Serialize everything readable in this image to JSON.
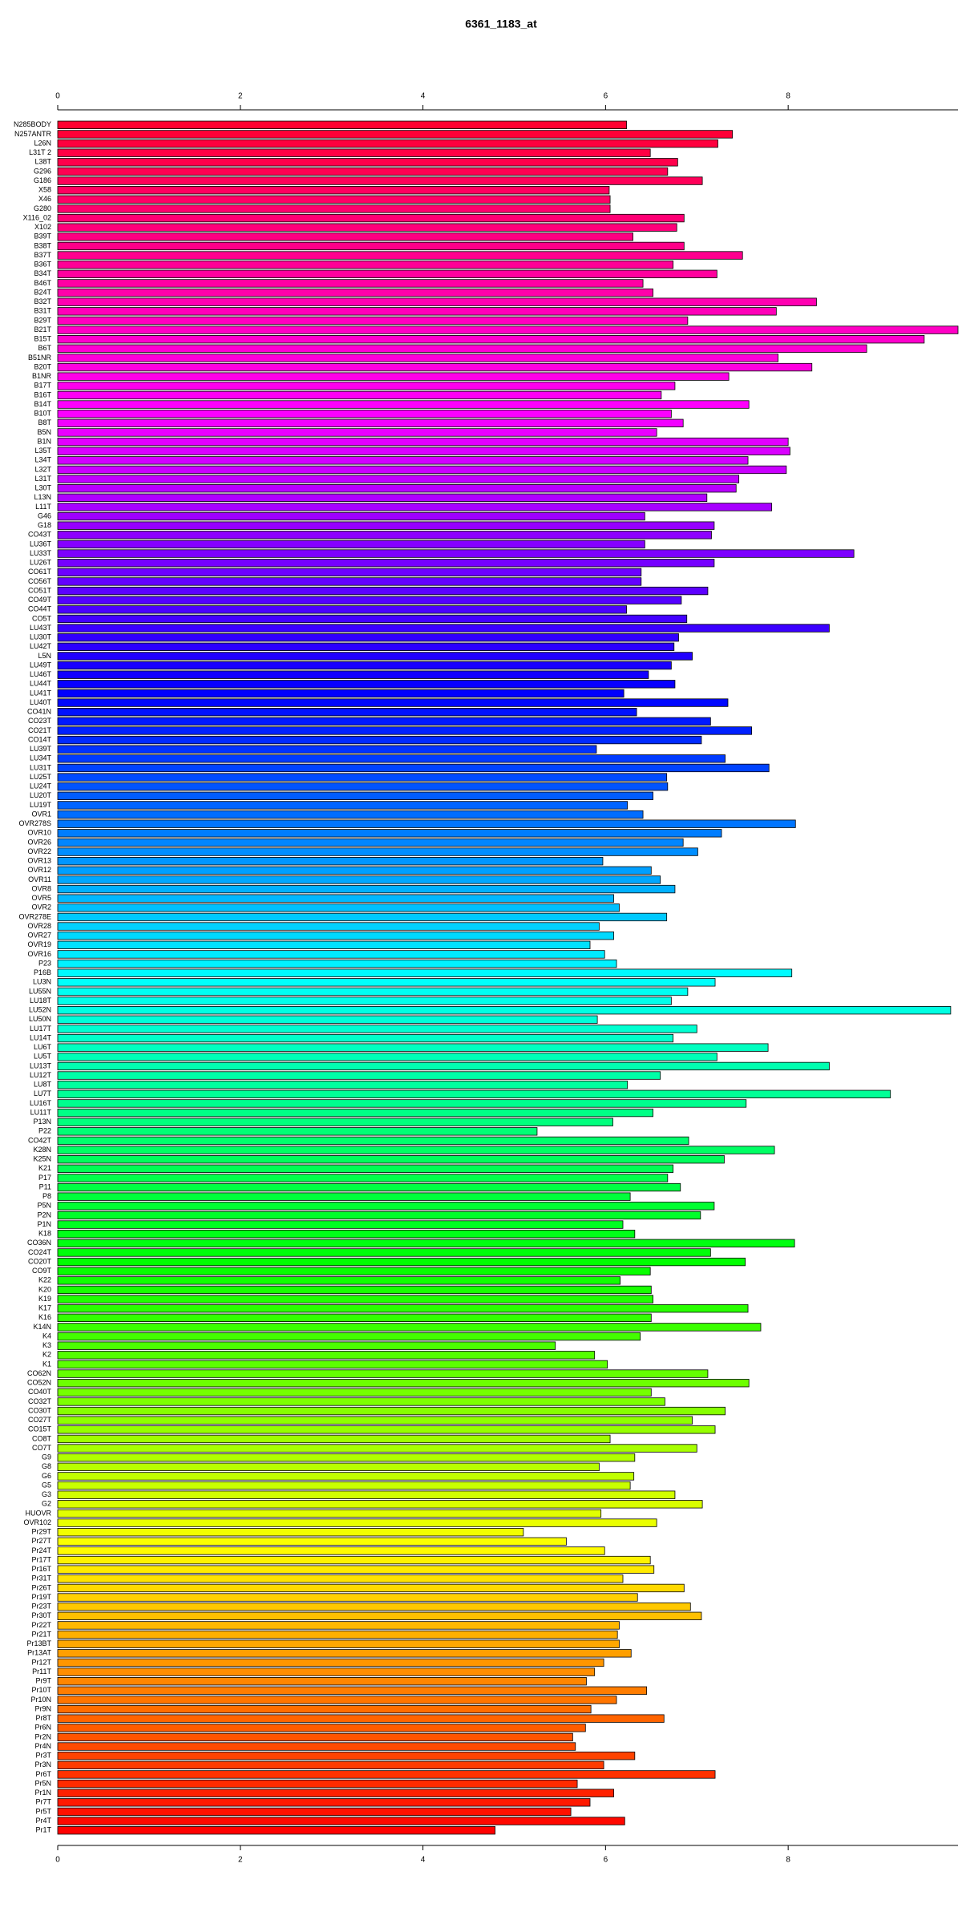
{
  "chart_data": {
    "type": "barh",
    "title": "6361_1183_at",
    "categories": [
      "N285BODY",
      "N257ANTR",
      "L26N",
      "L31T 2",
      "L38T",
      "G296",
      "G186",
      "X58",
      "X46",
      "G280",
      "X116_02",
      "X102",
      "B39T",
      "B38T",
      "B37T",
      "B36T",
      "B34T",
      "B46T",
      "B24T",
      "B32T",
      "B31T",
      "B29T",
      "B21T",
      "B15T",
      "B6T",
      "B51NR",
      "B20T",
      "B1NR",
      "B17T",
      "B16T",
      "B14T",
      "B10T",
      "B8T",
      "B5N",
      "B1N",
      "L35T",
      "L34T",
      "L32T",
      "L31T",
      "L30T",
      "L13N",
      "L11T",
      "G46",
      "G18",
      "CO43T",
      "LU36T",
      "LU33T",
      "LU26T",
      "CO61T",
      "CO56T",
      "CO51T",
      "CO49T",
      "CO44T",
      "CO5T",
      "LU43T",
      "LU30T",
      "LU42T",
      "L5N",
      "LU49T",
      "LU46T",
      "LU44T",
      "LU41T",
      "LU40T",
      "CO41N",
      "CO23T",
      "CO21T",
      "CO14T",
      "LU39T",
      "LU34T",
      "LU31T",
      "LU25T",
      "LU24T",
      "LU20T",
      "LU19T",
      "OVR1",
      "OVR278S",
      "OVR10",
      "OVR26",
      "OVR22",
      "OVR13",
      "OVR12",
      "OVR11",
      "OVR8",
      "OVR5",
      "OVR2",
      "OVR278E",
      "OVR28",
      "OVR27",
      "OVR19",
      "OVR16",
      "P23",
      "P16B",
      "LU3N",
      "LU55N",
      "LU18T",
      "LU52N",
      "LU50N",
      "LU17T",
      "LU14T",
      "LU6T",
      "LU5T",
      "LU13T",
      "LU12T",
      "LU8T",
      "LU7T",
      "LU16T",
      "LU11T",
      "P13N",
      "P22",
      "CO42T",
      "K28N",
      "K25N",
      "K21",
      "P17",
      "P11",
      "P8",
      "P5N",
      "P2N",
      "P1N",
      "K18",
      "CO36N",
      "CO24T",
      "CO20T",
      "CO9T",
      "K22",
      "K20",
      "K19",
      "K17",
      "K16",
      "K14N",
      "K4",
      "K3",
      "K2",
      "K1",
      "CO62N",
      "CO52N",
      "CO40T",
      "CO32T",
      "CO30T",
      "CO27T",
      "CO15T",
      "CO8T",
      "CO7T",
      "G9",
      "G8",
      "G6",
      "G5",
      "G3",
      "G2",
      "HUOVR",
      "OVR102",
      "Pr29T",
      "Pr27T",
      "Pr24T",
      "Pr17T",
      "Pr16T",
      "Pr31T",
      "Pr26T",
      "Pr19T",
      "Pr23T",
      "Pr30T",
      "Pr22T",
      "Pr21T",
      "Pr13BT",
      "Pr13AT",
      "Pr12T",
      "Pr11T",
      "Pr9T",
      "Pr10T",
      "Pr10N",
      "Pr9N",
      "Pr8T",
      "Pr6N",
      "Pr2N",
      "Pr4N",
      "Pr3T",
      "Pr3N",
      "Pr6T",
      "Pr5N",
      "Pr1N",
      "Pr7T",
      "Pr5T",
      "Pr4T",
      "Pr1T"
    ],
    "values": [
      6.23,
      7.39,
      7.23,
      6.49,
      6.79,
      6.68,
      7.06,
      6.04,
      6.05,
      6.05,
      6.86,
      6.78,
      6.3,
      6.86,
      7.5,
      6.74,
      7.22,
      6.41,
      6.52,
      8.31,
      7.87,
      6.9,
      9.86,
      9.49,
      8.86,
      7.89,
      8.26,
      7.35,
      6.76,
      6.61,
      7.57,
      6.72,
      6.85,
      6.56,
      8.0,
      8.02,
      7.56,
      7.98,
      7.46,
      7.43,
      7.11,
      7.82,
      6.43,
      7.19,
      7.16,
      6.43,
      8.72,
      7.19,
      6.39,
      6.39,
      7.12,
      6.83,
      6.23,
      6.89,
      8.45,
      6.8,
      6.75,
      6.95,
      6.72,
      6.47,
      6.76,
      6.2,
      7.34,
      6.34,
      7.15,
      7.6,
      7.05,
      5.9,
      7.31,
      7.79,
      6.67,
      6.68,
      6.52,
      6.24,
      6.41,
      8.08,
      7.27,
      6.85,
      7.01,
      5.97,
      6.5,
      6.6,
      6.76,
      6.09,
      6.15,
      6.67,
      5.93,
      6.09,
      5.83,
      5.99,
      6.12,
      8.04,
      7.2,
      6.9,
      6.72,
      9.78,
      5.91,
      7.0,
      6.74,
      7.78,
      7.22,
      8.45,
      6.6,
      6.24,
      9.12,
      7.54,
      6.52,
      6.08,
      5.25,
      6.91,
      7.85,
      7.3,
      6.74,
      6.68,
      6.82,
      6.27,
      7.19,
      7.04,
      6.19,
      6.32,
      8.07,
      7.15,
      7.53,
      6.49,
      6.16,
      6.5,
      6.52,
      7.56,
      6.5,
      7.7,
      6.38,
      5.45,
      5.88,
      6.02,
      7.12,
      7.57,
      6.5,
      6.65,
      7.31,
      6.95,
      7.2,
      6.05,
      7.0,
      6.32,
      5.93,
      6.31,
      6.27,
      6.76,
      7.06,
      5.95,
      6.56,
      5.1,
      5.57,
      5.99,
      6.49,
      6.53,
      6.19,
      6.86,
      6.35,
      6.93,
      7.05,
      6.15,
      6.13,
      6.15,
      6.28,
      5.98,
      5.88,
      5.79,
      6.45,
      6.12,
      5.84,
      6.64,
      5.78,
      5.64,
      5.67,
      6.32,
      5.98,
      7.2,
      5.69,
      6.09,
      5.83,
      5.62,
      6.21,
      4.79
    ],
    "colors": [
      "#ff0030",
      "#ff00ff",
      "#0000ff",
      "#00ffff",
      "#00ff00",
      "#ffff00",
      "#ff0000"
    ],
    "xlim": [
      0,
      9.86
    ],
    "xticks": [
      0,
      2,
      4,
      6,
      8
    ]
  }
}
